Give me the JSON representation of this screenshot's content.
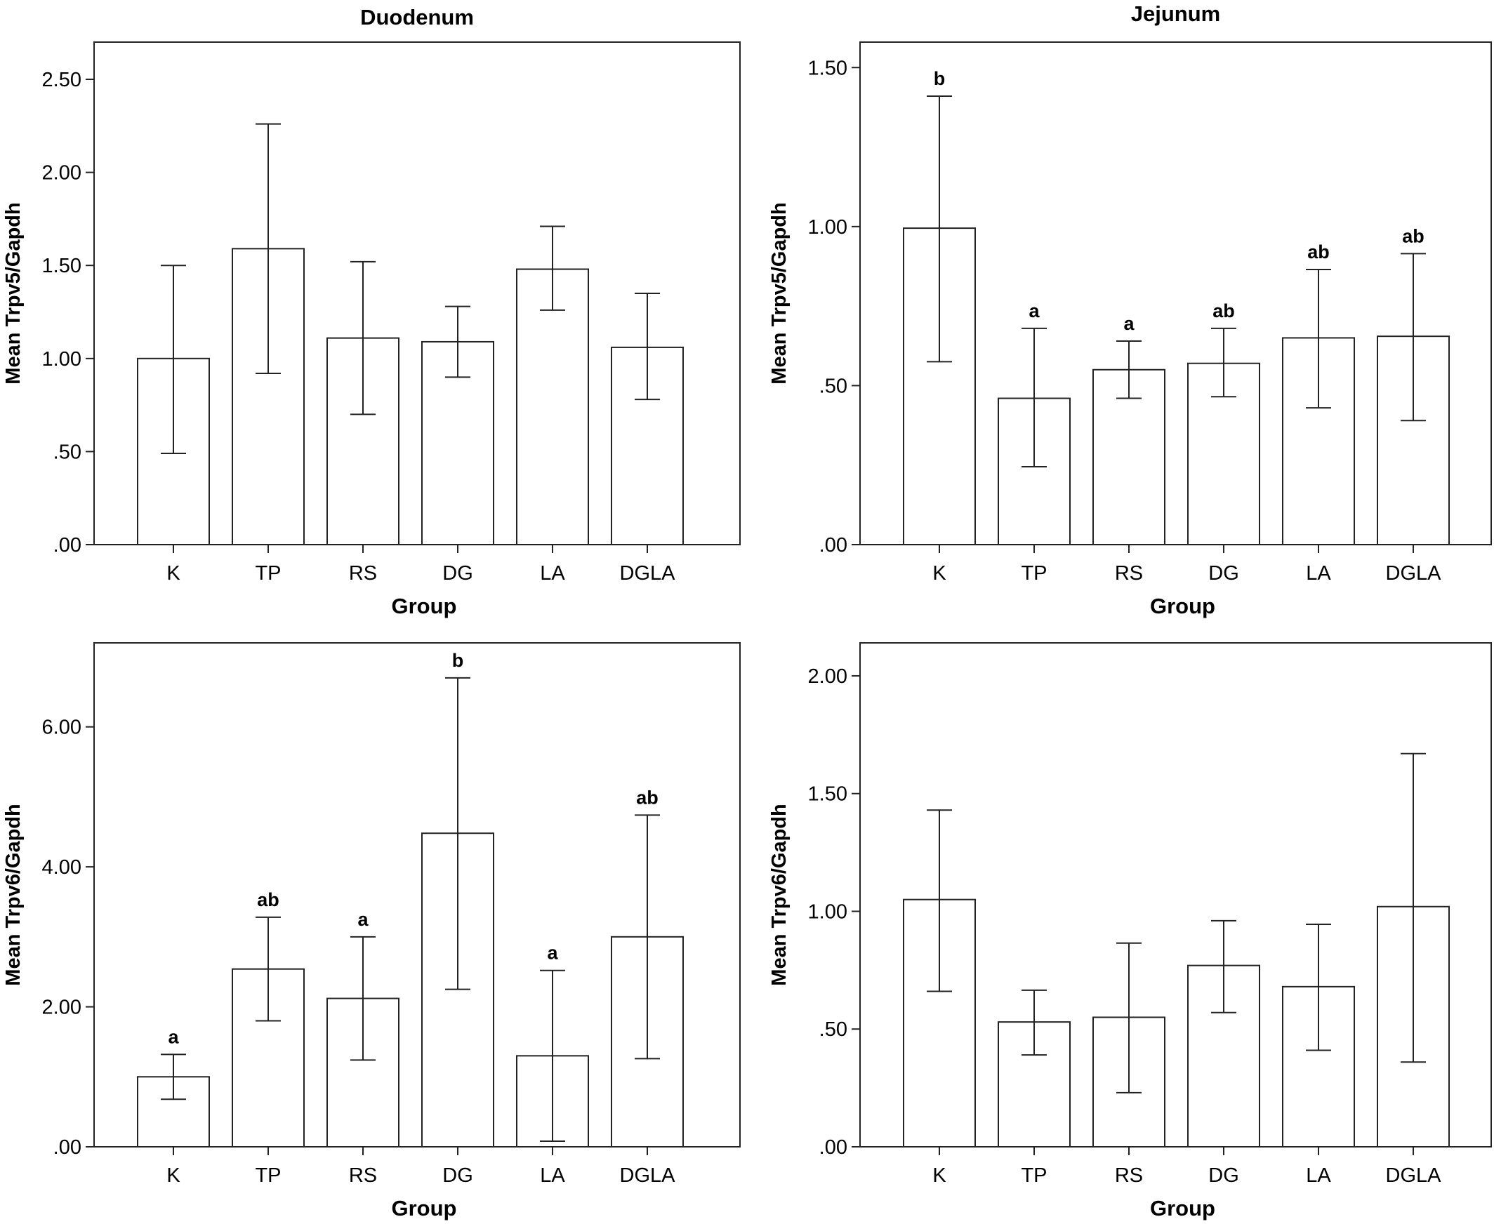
{
  "chart_data": [
    {
      "type": "bar",
      "title": "Duodenum",
      "xlabel": "Group",
      "ylabel": "Mean Trpv5/Gapdh",
      "categories": [
        "K",
        "TP",
        "RS",
        "DG",
        "LA",
        "DGLA"
      ],
      "values": [
        1.0,
        1.59,
        1.11,
        1.09,
        1.48,
        1.06
      ],
      "error_low": [
        0.49,
        0.92,
        0.7,
        0.9,
        1.26,
        0.78
      ],
      "error_high": [
        1.5,
        2.26,
        1.52,
        1.28,
        1.71,
        1.35
      ],
      "annotations": [
        "",
        "",
        "",
        "",
        "",
        ""
      ],
      "ylim": [
        0,
        2.7
      ],
      "yticks": [
        0,
        0.5,
        1.0,
        1.5,
        2.0,
        2.5
      ],
      "ytick_labels": [
        ".00",
        ".50",
        "1.00",
        "1.50",
        "2.00",
        "2.50"
      ],
      "grid": false
    },
    {
      "type": "bar",
      "title": "Jejunum",
      "xlabel": "Group",
      "ylabel": "Mean Trpv5/Gapdh",
      "categories": [
        "K",
        "TP",
        "RS",
        "DG",
        "LA",
        "DGLA"
      ],
      "values": [
        0.995,
        0.46,
        0.55,
        0.57,
        0.65,
        0.655
      ],
      "error_low": [
        0.575,
        0.245,
        0.46,
        0.465,
        0.43,
        0.39
      ],
      "error_high": [
        1.41,
        0.68,
        0.64,
        0.68,
        0.865,
        0.915
      ],
      "annotations": [
        "b",
        "a",
        "a",
        "ab",
        "ab",
        "ab"
      ],
      "ylim": [
        0,
        1.58
      ],
      "yticks": [
        0,
        0.5,
        1.0,
        1.5
      ],
      "ytick_labels": [
        ".00",
        ".50",
        "1.00",
        "1.50"
      ],
      "grid": false
    },
    {
      "type": "bar",
      "title": "",
      "xlabel": "Group",
      "ylabel": "Mean Trpv6/Gapdh",
      "categories": [
        "K",
        "TP",
        "RS",
        "DG",
        "LA",
        "DGLA"
      ],
      "values": [
        1.0,
        2.54,
        2.12,
        4.48,
        1.3,
        3.0
      ],
      "error_low": [
        0.68,
        1.8,
        1.24,
        2.25,
        0.08,
        1.26
      ],
      "error_high": [
        1.32,
        3.28,
        3.0,
        6.7,
        2.52,
        4.74
      ],
      "annotations": [
        "a",
        "ab",
        "a",
        "b",
        "a",
        "ab"
      ],
      "ylim": [
        0,
        7.2
      ],
      "yticks": [
        0,
        2,
        4,
        6
      ],
      "ytick_labels": [
        ".00",
        "2.00",
        "4.00",
        "6.00"
      ],
      "grid": false
    },
    {
      "type": "bar",
      "title": "",
      "xlabel": "Group",
      "ylabel": "Mean Trpv6/Gapdh",
      "categories": [
        "K",
        "TP",
        "RS",
        "DG",
        "LA",
        "DGLA"
      ],
      "values": [
        1.05,
        0.53,
        0.55,
        0.77,
        0.68,
        1.02
      ],
      "error_low": [
        0.66,
        0.39,
        0.23,
        0.57,
        0.41,
        0.36
      ],
      "error_high": [
        1.43,
        0.665,
        0.865,
        0.96,
        0.945,
        1.67
      ],
      "annotations": [
        "",
        "",
        "",
        "",
        "",
        ""
      ],
      "ylim": [
        0,
        2.14
      ],
      "yticks": [
        0,
        0.5,
        1.0,
        1.5,
        2.0
      ],
      "ytick_labels": [
        ".00",
        ".50",
        "1.00",
        "1.50",
        "2.00"
      ],
      "grid": false
    }
  ]
}
